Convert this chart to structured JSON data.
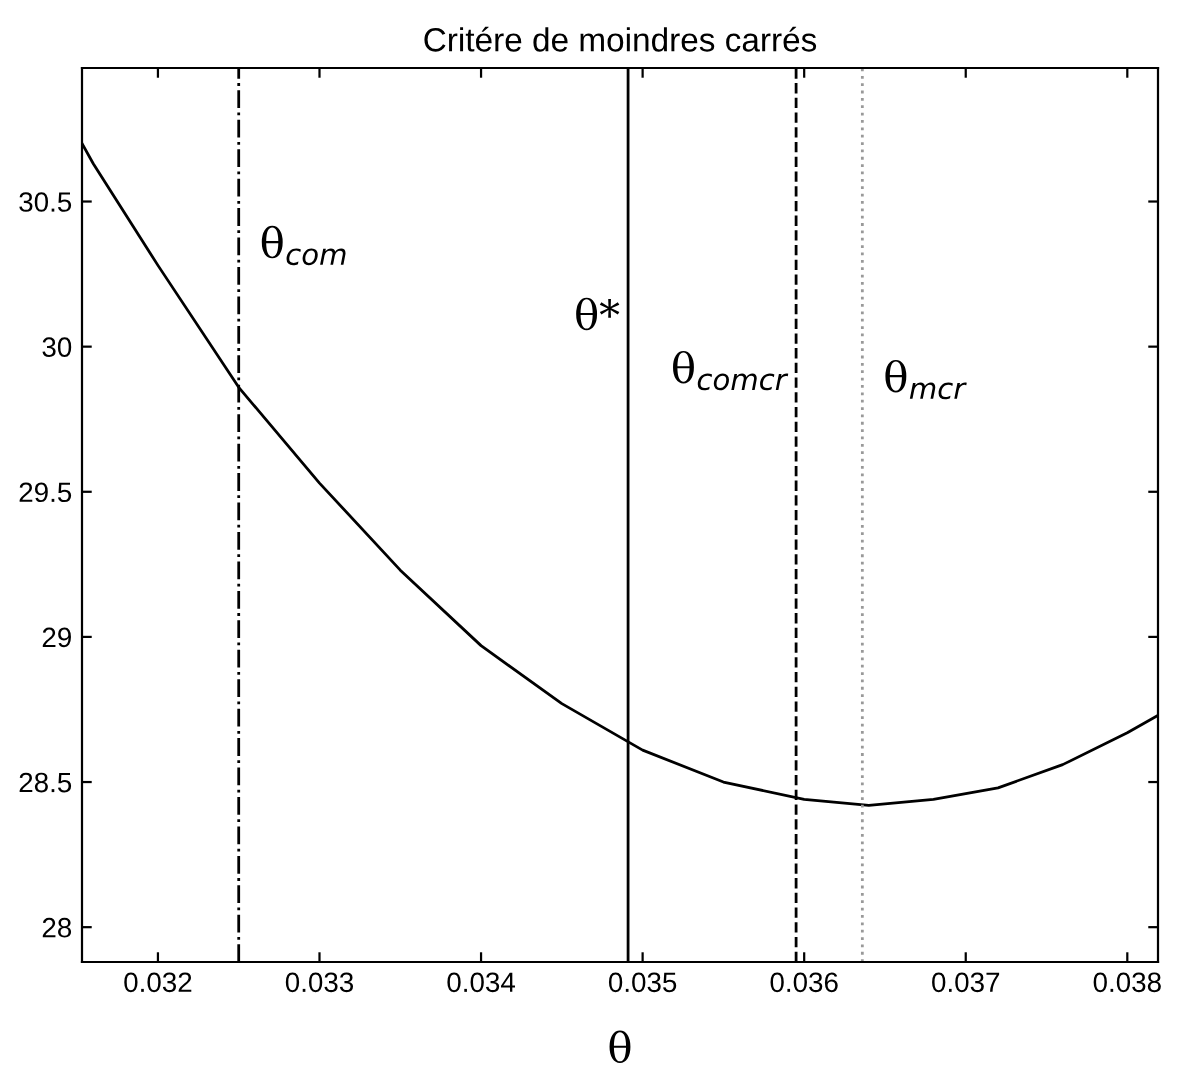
{
  "chart_data": {
    "type": "line",
    "title": "Critére de moindres carrés",
    "xlabel": "θ",
    "x": [
      0.03153,
      0.0316,
      0.032,
      0.0325,
      0.033,
      0.0335,
      0.034,
      0.0345,
      0.035,
      0.0355,
      0.036,
      0.0364,
      0.0368,
      0.0372,
      0.0376,
      0.038,
      0.03819
    ],
    "series": [
      {
        "color": "#000000",
        "values": [
          30.7,
          30.63,
          30.28,
          29.86,
          29.53,
          29.23,
          28.97,
          28.77,
          28.61,
          28.5,
          28.44,
          28.42,
          28.44,
          28.48,
          28.56,
          28.67,
          28.73
        ]
      }
    ],
    "xlim": [
      0.03153,
      0.03819
    ],
    "ylim": [
      27.88,
      30.96
    ],
    "xticks": [
      0.032,
      0.033,
      0.034,
      0.035,
      0.036,
      0.037,
      0.038
    ],
    "yticks": [
      28,
      28.5,
      29,
      29.5,
      30,
      30.5
    ],
    "ref_lines": [
      {
        "axis": "x",
        "value": 0.0325,
        "label": "θ$_{com}$",
        "color": "#000000",
        "line_style": "dashdot"
      },
      {
        "axis": "x",
        "value": 0.03491,
        "label": "θ*",
        "color": "#000000",
        "line_style": "solid"
      },
      {
        "axis": "x",
        "value": 0.03595,
        "label": "θ$_{comcr}$",
        "color": "#000000",
        "line_style": "dashed"
      },
      {
        "axis": "x",
        "value": 0.03636,
        "label": "θ$_{mcr}$",
        "color": "#999999",
        "line_style": "dotted"
      }
    ],
    "grid": false,
    "legend": false,
    "marker": "none",
    "line_style": "solid"
  }
}
